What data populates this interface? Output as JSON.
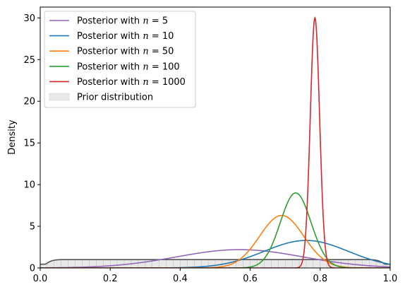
{
  "chart_data": {
    "type": "line",
    "title": "",
    "xlabel": "",
    "ylabel": "Density",
    "xlim": [
      0.0,
      1.0
    ],
    "ylim": [
      0,
      31.3
    ],
    "x_ticks": [
      "0.0",
      "0.2",
      "0.4",
      "0.6",
      "0.8",
      "1.0"
    ],
    "y_ticks": [
      "0",
      "5",
      "10",
      "15",
      "20",
      "25",
      "30"
    ],
    "grid": false,
    "legend_position": "top-left",
    "series": [
      {
        "name_prefix": "Posterior with ",
        "name_var": "n",
        "name_eq": " = 5",
        "color": "#9467bd",
        "peak_x": 0.57,
        "peak_y": 2.2,
        "sd": 0.18
      },
      {
        "name_prefix": "Posterior with ",
        "name_var": "n",
        "name_eq": " = 10",
        "color": "#1f77b4",
        "peak_x": 0.76,
        "peak_y": 3.3,
        "sd": 0.12
      },
      {
        "name_prefix": "Posterior with ",
        "name_var": "n",
        "name_eq": " = 50",
        "color": "#ff7f0e",
        "peak_x": 0.69,
        "peak_y": 6.3,
        "sd": 0.063
      },
      {
        "name_prefix": "Posterior with ",
        "name_var": "n",
        "name_eq": " = 100",
        "color": "#2ca02c",
        "peak_x": 0.73,
        "peak_y": 9.0,
        "sd": 0.044
      },
      {
        "name_prefix": "Posterior with ",
        "name_var": "n",
        "name_eq": " = 1000",
        "color": "#d62728",
        "peak_x": 0.785,
        "peak_y": 30.0,
        "sd": 0.0133
      }
    ],
    "prior": {
      "name": "Prior distribution",
      "value": 1.0,
      "fill": "#e8e8e8",
      "line": "#555555"
    }
  }
}
